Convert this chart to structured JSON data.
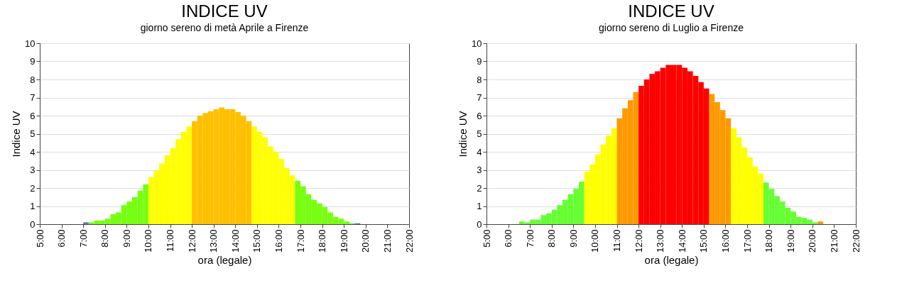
{
  "chart_data": [
    {
      "type": "bar",
      "title": "INDICE UV",
      "subtitle": "giorno sereno di metà Aprile a Firenze",
      "xlabel": "ora (legale)",
      "ylabel": "Indice UV",
      "x": [
        7.125,
        7.375,
        7.625,
        7.875,
        8.125,
        8.375,
        8.625,
        8.875,
        9.125,
        9.375,
        9.625,
        9.875,
        10.125,
        10.375,
        10.625,
        10.875,
        11.125,
        11.375,
        11.625,
        11.875,
        12.125,
        12.375,
        12.625,
        12.875,
        13.125,
        13.375,
        13.625,
        13.875,
        14.125,
        14.375,
        14.625,
        14.875,
        15.125,
        15.375,
        15.625,
        15.875,
        16.125,
        16.375,
        16.625,
        16.875,
        17.125,
        17.375,
        17.625,
        17.875,
        18.125,
        18.375,
        18.625,
        18.875,
        19.125,
        19.375,
        19.625
      ],
      "values": [
        0.1,
        0.1,
        0.2,
        0.2,
        0.3,
        0.55,
        0.65,
        1.05,
        1.25,
        1.5,
        1.85,
        2.2,
        2.6,
        2.95,
        3.35,
        3.8,
        4.2,
        4.7,
        5.1,
        5.4,
        5.7,
        6.0,
        6.15,
        6.25,
        6.35,
        6.45,
        6.35,
        6.35,
        6.2,
        6.0,
        5.7,
        5.4,
        5.1,
        4.8,
        4.3,
        4.0,
        3.6,
        3.1,
        2.7,
        2.4,
        2.1,
        1.65,
        1.35,
        1.15,
        0.95,
        0.65,
        0.4,
        0.3,
        0.15,
        0.05,
        0.05
      ],
      "colors": [
        "#4f81bd",
        "#77ff11",
        "#77ff11",
        "#77ff11",
        "#77ff11",
        "#77ff11",
        "#77ff11",
        "#77ff11",
        "#77ff11",
        "#77ff11",
        "#77ff11",
        "#77ff11",
        "#ffff00",
        "#ffff00",
        "#ffff00",
        "#ffff00",
        "#ffff00",
        "#ffff00",
        "#ffff00",
        "#ffff00",
        "#ffc000",
        "#ffc000",
        "#ffc000",
        "#ffc000",
        "#ffc000",
        "#ffc000",
        "#ffc000",
        "#ffc000",
        "#ffc000",
        "#ffc000",
        "#ffc000",
        "#ffff00",
        "#ffff00",
        "#ffff00",
        "#ffff00",
        "#ffff00",
        "#ffff00",
        "#ffff00",
        "#ffff00",
        "#77ff11",
        "#77ff11",
        "#77ff11",
        "#77ff11",
        "#77ff11",
        "#77ff11",
        "#77ff11",
        "#77ff11",
        "#77ff11",
        "#77ff11",
        "#77ff11",
        "#4f81bd"
      ],
      "xlim": [
        5,
        22
      ],
      "xticks": [
        {
          "value": 5,
          "label": "5:00"
        },
        {
          "value": 6,
          "label": "6:00"
        },
        {
          "value": 7,
          "label": "7:00"
        },
        {
          "value": 8,
          "label": "8:00"
        },
        {
          "value": 9,
          "label": "9:00"
        },
        {
          "value": 10,
          "label": "10:00"
        },
        {
          "value": 11,
          "label": "11:00"
        },
        {
          "value": 12,
          "label": "12:00"
        },
        {
          "value": 13,
          "label": "13:00"
        },
        {
          "value": 14,
          "label": "14:00"
        },
        {
          "value": 15,
          "label": "15:00"
        },
        {
          "value": 16,
          "label": "16:00"
        },
        {
          "value": 17,
          "label": "17:00"
        },
        {
          "value": 18,
          "label": "18:00"
        },
        {
          "value": 19,
          "label": "19:00"
        },
        {
          "value": 20,
          "label": "20:00"
        },
        {
          "value": 21,
          "label": "21:00"
        },
        {
          "value": 22,
          "label": "22:00"
        }
      ],
      "ylim": [
        0,
        10
      ],
      "yticks": [
        0,
        1,
        2,
        3,
        4,
        5,
        6,
        7,
        8,
        9,
        10
      ],
      "grid": "y"
    },
    {
      "type": "bar",
      "title": "INDICE UV",
      "subtitle": "giorno sereno di Luglio a Firenze",
      "xlabel": "ora (legale)",
      "ylabel": "Indice UV",
      "x": [
        6.625,
        6.875,
        7.125,
        7.375,
        7.625,
        7.875,
        8.125,
        8.375,
        8.625,
        8.875,
        9.125,
        9.375,
        9.625,
        9.875,
        10.125,
        10.375,
        10.625,
        10.875,
        11.125,
        11.375,
        11.625,
        11.875,
        12.125,
        12.375,
        12.625,
        12.875,
        13.125,
        13.375,
        13.625,
        13.875,
        14.125,
        14.375,
        14.625,
        14.875,
        15.125,
        15.375,
        15.625,
        15.875,
        16.125,
        16.375,
        16.625,
        16.875,
        17.125,
        17.375,
        17.625,
        17.875,
        18.125,
        18.375,
        18.625,
        18.875,
        19.125,
        19.375,
        19.625,
        19.875,
        20.125,
        20.375
      ],
      "values": [
        0.15,
        0.1,
        0.25,
        0.25,
        0.5,
        0.6,
        0.8,
        1.05,
        1.35,
        1.65,
        1.95,
        2.35,
        2.9,
        3.3,
        3.85,
        4.4,
        4.9,
        5.3,
        5.85,
        6.4,
        6.85,
        7.3,
        7.65,
        8.0,
        8.3,
        8.45,
        8.65,
        8.8,
        8.8,
        8.8,
        8.65,
        8.45,
        8.2,
        7.85,
        7.5,
        7.2,
        6.75,
        6.3,
        5.85,
        5.3,
        4.8,
        4.25,
        3.7,
        3.2,
        2.8,
        2.3,
        1.95,
        1.55,
        1.25,
        0.9,
        0.7,
        0.4,
        0.35,
        0.25,
        0.1,
        0.15
      ],
      "colors": [
        "#66ff33",
        "#66ff33",
        "#66ff33",
        "#66ff33",
        "#66ff33",
        "#66ff33",
        "#66ff33",
        "#66ff33",
        "#66ff33",
        "#66ff33",
        "#66ff33",
        "#66ff33",
        "#ffff00",
        "#ffff00",
        "#ffff00",
        "#ffff00",
        "#ffff00",
        "#ffff00",
        "#ff9900",
        "#ff9900",
        "#ff9900",
        "#ff9900",
        "#ff0000",
        "#ff0000",
        "#ff0000",
        "#ff0000",
        "#ff0000",
        "#ff0000",
        "#ff0000",
        "#ff0000",
        "#ff0000",
        "#ff0000",
        "#ff0000",
        "#ff0000",
        "#ff0000",
        "#ff9900",
        "#ff9900",
        "#ff9900",
        "#ff9900",
        "#ffff00",
        "#ffff00",
        "#ffff00",
        "#ffff00",
        "#ffff00",
        "#ffff00",
        "#66ff33",
        "#66ff33",
        "#66ff33",
        "#66ff33",
        "#66ff33",
        "#66ff33",
        "#66ff33",
        "#66ff33",
        "#66ff33",
        "#66ff33",
        "#ff9900"
      ],
      "xlim": [
        5,
        22
      ],
      "xticks": [
        {
          "value": 5,
          "label": "5:00"
        },
        {
          "value": 6,
          "label": "6:00"
        },
        {
          "value": 7,
          "label": "7:00"
        },
        {
          "value": 8,
          "label": "8:00"
        },
        {
          "value": 9,
          "label": "9:00"
        },
        {
          "value": 10,
          "label": "10:00"
        },
        {
          "value": 11,
          "label": "11:00"
        },
        {
          "value": 12,
          "label": "12:00"
        },
        {
          "value": 13,
          "label": "13:00"
        },
        {
          "value": 14,
          "label": "14:00"
        },
        {
          "value": 15,
          "label": "15:00"
        },
        {
          "value": 16,
          "label": "16:00"
        },
        {
          "value": 17,
          "label": "17:00"
        },
        {
          "value": 18,
          "label": "18:00"
        },
        {
          "value": 19,
          "label": "19:00"
        },
        {
          "value": 20,
          "label": "20:00"
        },
        {
          "value": 21,
          "label": "21:00"
        },
        {
          "value": 22,
          "label": "22:00"
        }
      ],
      "ylim": [
        0,
        10
      ],
      "yticks": [
        0,
        1,
        2,
        3,
        4,
        5,
        6,
        7,
        8,
        9,
        10
      ],
      "grid": "y"
    }
  ]
}
